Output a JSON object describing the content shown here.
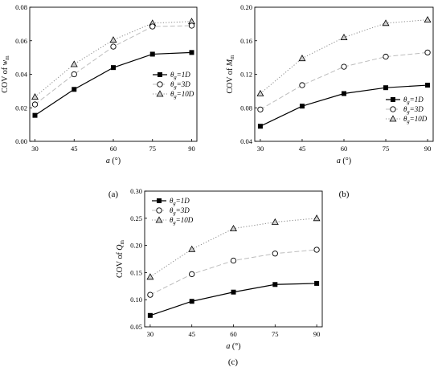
{
  "chart_data": [
    {
      "type": "line",
      "panel_label": "(a)",
      "ylabel": "COV of w_m",
      "ylabel_main": "COV of ",
      "ylabel_var": "w",
      "ylabel_sub": "m",
      "xlabel": "a (°)",
      "xlabel_var": "a",
      "xlabel_rest": " (°)",
      "x": [
        30,
        45,
        60,
        75,
        90
      ],
      "xlim": [
        28,
        92
      ],
      "xticks": [
        "30",
        "45",
        "60",
        "75",
        "90"
      ],
      "ylim": [
        0.0,
        0.08
      ],
      "yticks": [
        "0.00",
        "0.02",
        "0.04",
        "0.06",
        "0.08"
      ],
      "grid": false,
      "legend_position": "center-right",
      "series": [
        {
          "name": "θg=1D",
          "legend_sym": "θ",
          "legend_sub": "g",
          "legend_rest": "=1D",
          "marker": "square-filled",
          "line": "solid",
          "values": [
            0.0155,
            0.031,
            0.044,
            0.052,
            0.053
          ]
        },
        {
          "name": "θg=3D",
          "legend_sym": "θ",
          "legend_sub": "g",
          "legend_rest": "=3D",
          "marker": "circle-open",
          "line": "dashed",
          "values": [
            0.022,
            0.04,
            0.0565,
            0.0685,
            0.069
          ]
        },
        {
          "name": "θg=10D",
          "legend_sym": "θ",
          "legend_sub": "g",
          "legend_rest": "=10D",
          "marker": "triangle-open",
          "line": "dotted",
          "values": [
            0.0265,
            0.046,
            0.0605,
            0.0705,
            0.0715
          ]
        }
      ]
    },
    {
      "type": "line",
      "panel_label": "(b)",
      "ylabel": "COV of M_m",
      "ylabel_main": "COV of ",
      "ylabel_var": "M",
      "ylabel_sub": "m",
      "xlabel": "a (°)",
      "xlabel_var": "a",
      "xlabel_rest": " (°)",
      "x": [
        30,
        45,
        60,
        75,
        90
      ],
      "xlim": [
        28,
        92
      ],
      "xticks": [
        "30",
        "45",
        "60",
        "75",
        "90"
      ],
      "ylim": [
        0.04,
        0.2
      ],
      "yticks": [
        "0.04",
        "0.08",
        "0.12",
        "0.16",
        "0.20"
      ],
      "grid": false,
      "legend_position": "bottom-right",
      "series": [
        {
          "name": "θg=1D",
          "legend_sym": "θ",
          "legend_sub": "g",
          "legend_rest": "=1D",
          "marker": "square-filled",
          "line": "solid",
          "values": [
            0.058,
            0.082,
            0.097,
            0.104,
            0.107
          ]
        },
        {
          "name": "θg=3D",
          "legend_sym": "θ",
          "legend_sub": "g",
          "legend_rest": "=3D",
          "marker": "circle-open",
          "line": "dashed",
          "values": [
            0.078,
            0.107,
            0.129,
            0.141,
            0.146
          ]
        },
        {
          "name": "θg=10D",
          "legend_sym": "θ",
          "legend_sub": "g",
          "legend_rest": "=10D",
          "marker": "triangle-open",
          "line": "dotted",
          "values": [
            0.097,
            0.139,
            0.164,
            0.181,
            0.185
          ]
        }
      ]
    },
    {
      "type": "line",
      "panel_label": "(c)",
      "ylabel": "COV of Q_m",
      "ylabel_main": "COV of ",
      "ylabel_var": "Q",
      "ylabel_sub": "m",
      "xlabel": "a (°)",
      "xlabel_var": "a",
      "xlabel_rest": " (°)",
      "x": [
        30,
        45,
        60,
        75,
        90
      ],
      "xlim": [
        28,
        92
      ],
      "xticks": [
        "30",
        "45",
        "60",
        "75",
        "90"
      ],
      "ylim": [
        0.05,
        0.3
      ],
      "yticks": [
        "0.05",
        "0.10",
        "0.15",
        "0.20",
        "0.25",
        "0.30"
      ],
      "grid": false,
      "legend_position": "top-left",
      "series": [
        {
          "name": "θg=1D",
          "legend_sym": "θ",
          "legend_sub": "g",
          "legend_rest": "=1D",
          "marker": "square-filled",
          "line": "solid",
          "values": [
            0.071,
            0.097,
            0.114,
            0.128,
            0.13
          ]
        },
        {
          "name": "θg=3D",
          "legend_sym": "θ",
          "legend_sub": "g",
          "legend_rest": "=3D",
          "marker": "circle-open",
          "line": "dashed",
          "values": [
            0.109,
            0.147,
            0.172,
            0.185,
            0.192
          ]
        },
        {
          "name": "θg=10D",
          "legend_sym": "θ",
          "legend_sub": "g",
          "legend_rest": "=10D",
          "marker": "triangle-open",
          "line": "dotted",
          "values": [
            0.142,
            0.193,
            0.231,
            0.243,
            0.25
          ]
        }
      ]
    }
  ]
}
